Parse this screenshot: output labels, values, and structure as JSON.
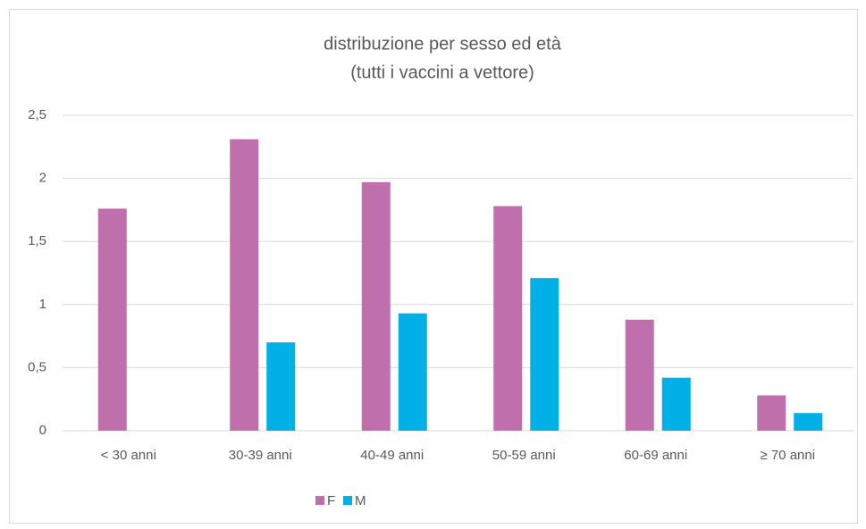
{
  "chart_data": {
    "type": "bar",
    "title": "distribuzione per sesso ed età",
    "subtitle": "(tutti i vaccini a vettore)",
    "categories": [
      "< 30 anni",
      "30-39 anni",
      "40-49 anni",
      "50-59 anni",
      "60-69 anni",
      "≥ 70 anni"
    ],
    "series": [
      {
        "name": "F",
        "color": "#c06fad",
        "values": [
          1.76,
          2.31,
          1.97,
          1.78,
          0.88,
          0.28
        ]
      },
      {
        "name": "M",
        "color": "#00b0e6",
        "values": [
          0,
          0.7,
          0.93,
          1.21,
          0.42,
          0.14
        ]
      }
    ],
    "ylim": [
      0,
      2.5
    ],
    "yticks": [
      0,
      {
        "value": 0.5,
        "label": "0,5"
      },
      1,
      {
        "value": 1.5,
        "label": "1,5"
      },
      2,
      {
        "value": 2.5,
        "label": "2,5"
      }
    ],
    "grid": true,
    "legend": "bottom"
  }
}
